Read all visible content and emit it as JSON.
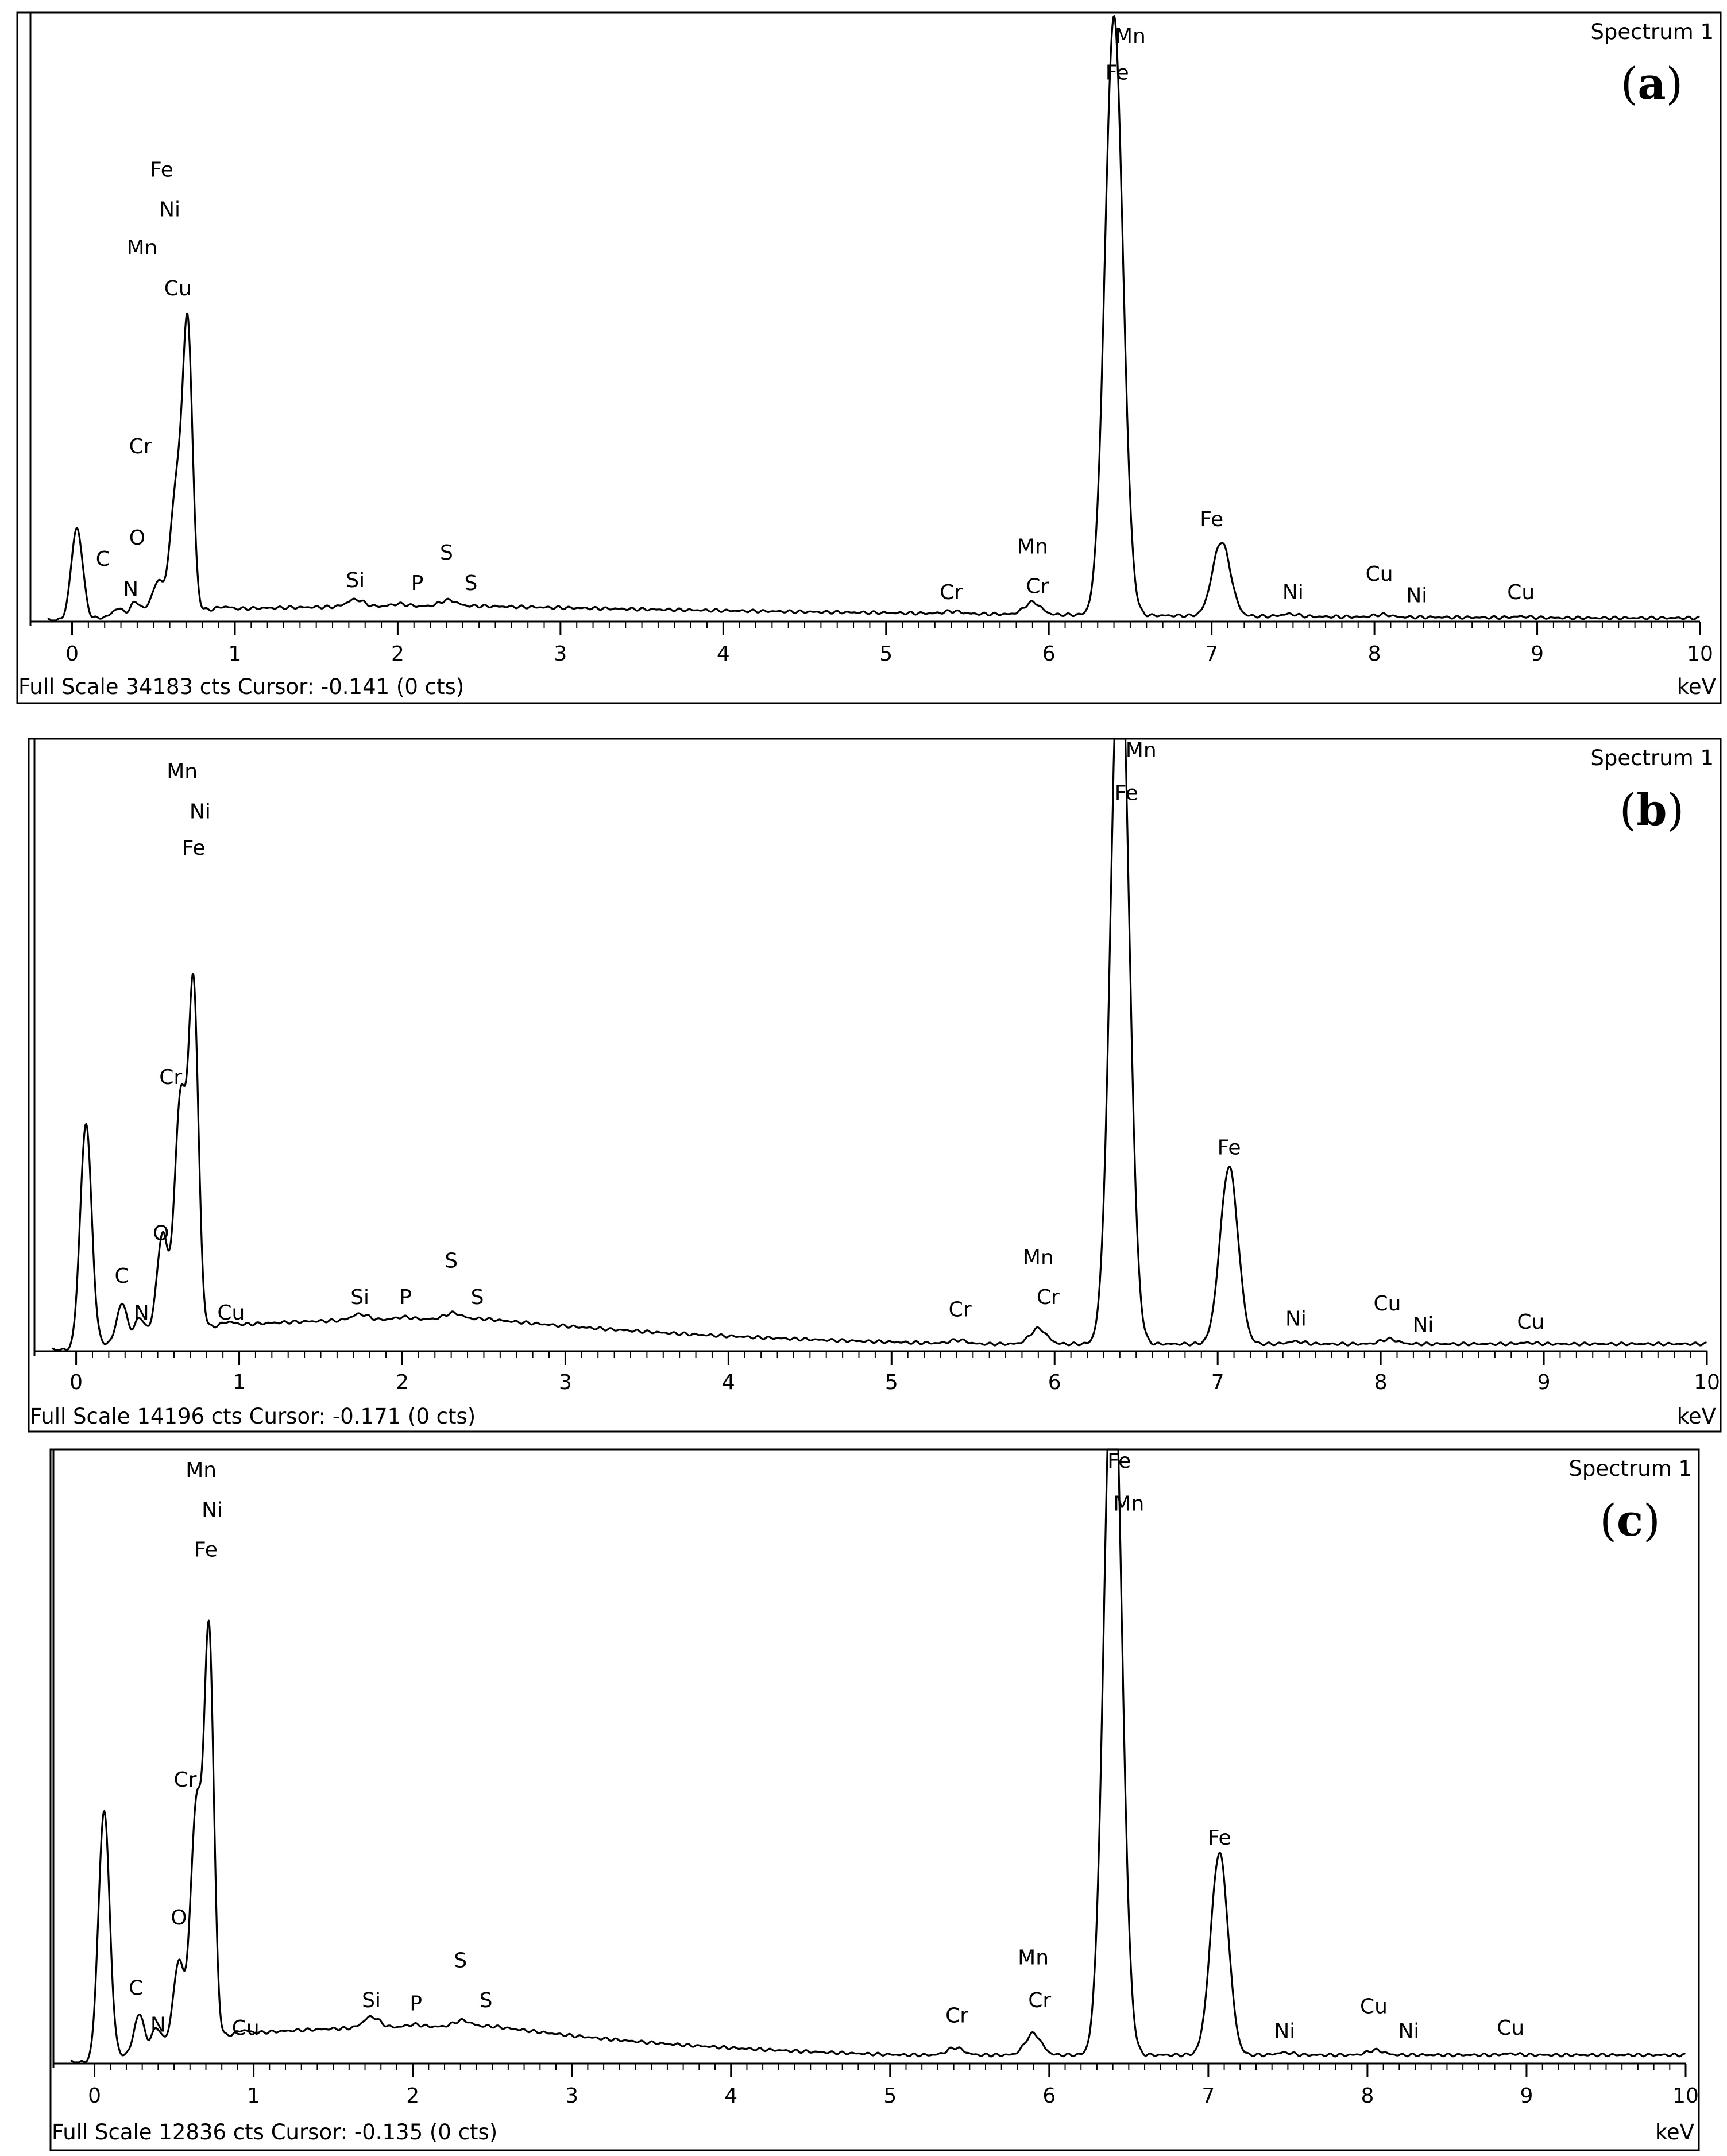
{
  "chart_data": [
    {
      "type": "line",
      "panel_label": "a",
      "spectrum_title": "Spectrum 1",
      "footer": "Full Scale 34183 cts Cursor: -0.141  (0 cts)",
      "xunit": "keV",
      "xlim": [
        -0.15,
        10
      ],
      "xticks": [
        "0",
        "1",
        "2",
        "3",
        "4",
        "5",
        "6",
        "7",
        "8",
        "9",
        "10"
      ],
      "peaks": [
        {
          "x": 0.03,
          "h": 0.152,
          "w": 0.035
        },
        {
          "x": 0.28,
          "h": 0.012,
          "w": 0.03
        },
        {
          "x": 0.39,
          "h": 0.02,
          "w": 0.03
        },
        {
          "x": 0.53,
          "h": 0.05,
          "w": 0.04
        },
        {
          "x": 0.64,
          "h": 0.2,
          "w": 0.035
        },
        {
          "x": 0.71,
          "h": 0.46,
          "w": 0.03
        },
        {
          "x": 0.93,
          "h": 0.004,
          "w": 0.04
        },
        {
          "x": 1.74,
          "h": 0.012,
          "w": 0.05
        },
        {
          "x": 2.01,
          "h": 0.004,
          "w": 0.05
        },
        {
          "x": 2.31,
          "h": 0.01,
          "w": 0.05
        },
        {
          "x": 5.41,
          "h": 0.004,
          "w": 0.05
        },
        {
          "x": 5.9,
          "h": 0.02,
          "w": 0.05
        },
        {
          "x": 6.4,
          "h": 0.985,
          "w": 0.055
        },
        {
          "x": 7.06,
          "h": 0.122,
          "w": 0.055
        },
        {
          "x": 7.48,
          "h": 0.004,
          "w": 0.05
        },
        {
          "x": 8.05,
          "h": 0.004,
          "w": 0.05
        },
        {
          "x": 8.9,
          "h": 0.002,
          "w": 0.05
        }
      ],
      "background": {
        "max": 0.024,
        "rise": 0.6,
        "peak_at": 2.5,
        "decay": 0.0026,
        "base": 0.004
      },
      "element_labels": [
        {
          "text": "Fe",
          "x": 0.55,
          "y": 0.73
        },
        {
          "text": "Ni",
          "x": 0.6,
          "y": 0.665
        },
        {
          "text": "Mn",
          "x": 0.43,
          "y": 0.602
        },
        {
          "text": "Cu",
          "x": 0.65,
          "y": 0.535
        },
        {
          "text": "Cr",
          "x": 0.42,
          "y": 0.275
        },
        {
          "text": "O",
          "x": 0.4,
          "y": 0.125
        },
        {
          "text": "C",
          "x": 0.19,
          "y": 0.09
        },
        {
          "text": "N",
          "x": 0.36,
          "y": 0.04
        },
        {
          "text": "Si",
          "x": 1.74,
          "y": 0.055
        },
        {
          "text": "P",
          "x": 2.12,
          "y": 0.05
        },
        {
          "text": "S",
          "x": 2.3,
          "y": 0.1
        },
        {
          "text": "S",
          "x": 2.45,
          "y": 0.05
        },
        {
          "text": "Cr",
          "x": 5.4,
          "y": 0.035
        },
        {
          "text": "Mn",
          "x": 5.9,
          "y": 0.11
        },
        {
          "text": "Cr",
          "x": 5.93,
          "y": 0.045
        },
        {
          "text": "Mn",
          "x": 6.5,
          "y": 0.95
        },
        {
          "text": "Fe",
          "x": 6.42,
          "y": 0.89
        },
        {
          "text": "Fe",
          "x": 7.0,
          "y": 0.155
        },
        {
          "text": "Ni",
          "x": 7.5,
          "y": 0.035
        },
        {
          "text": "Cu",
          "x": 8.03,
          "y": 0.065
        },
        {
          "text": "Ni",
          "x": 8.26,
          "y": 0.03
        },
        {
          "text": "Cu",
          "x": 8.9,
          "y": 0.035
        }
      ]
    },
    {
      "type": "line",
      "panel_label": "b",
      "spectrum_title": "Spectrum 1",
      "footer": "Full Scale 14196 cts Cursor: -0.171  (0 cts)",
      "xunit": "keV",
      "xlim": [
        -0.15,
        10
      ],
      "xticks": [
        "0",
        "1",
        "2",
        "3",
        "4",
        "5",
        "6",
        "7",
        "8",
        "9",
        "10"
      ],
      "peaks": [
        {
          "x": 0.06,
          "h": 0.37,
          "w": 0.035
        },
        {
          "x": 0.28,
          "h": 0.06,
          "w": 0.03
        },
        {
          "x": 0.39,
          "h": 0.03,
          "w": 0.03
        },
        {
          "x": 0.53,
          "h": 0.16,
          "w": 0.035
        },
        {
          "x": 0.64,
          "h": 0.38,
          "w": 0.035
        },
        {
          "x": 0.72,
          "h": 0.55,
          "w": 0.03
        },
        {
          "x": 0.93,
          "h": 0.006,
          "w": 0.04
        },
        {
          "x": 1.74,
          "h": 0.01,
          "w": 0.05
        },
        {
          "x": 2.01,
          "h": 0.004,
          "w": 0.05
        },
        {
          "x": 2.31,
          "h": 0.01,
          "w": 0.05
        },
        {
          "x": 5.41,
          "h": 0.006,
          "w": 0.05
        },
        {
          "x": 5.9,
          "h": 0.025,
          "w": 0.05
        },
        {
          "x": 6.4,
          "h": 1.2,
          "w": 0.055
        },
        {
          "x": 7.07,
          "h": 0.29,
          "w": 0.055
        },
        {
          "x": 7.48,
          "h": 0.004,
          "w": 0.05
        },
        {
          "x": 8.05,
          "h": 0.008,
          "w": 0.05
        },
        {
          "x": 8.9,
          "h": 0.002,
          "w": 0.05
        }
      ],
      "background": {
        "max": 0.052,
        "rise": 0.6,
        "peak_at": 2.5,
        "decay": 0.0055,
        "base": 0.01
      },
      "element_labels": [
        {
          "text": "Mn",
          "x": 0.65,
          "y": 0.935
        },
        {
          "text": "Ni",
          "x": 0.76,
          "y": 0.87
        },
        {
          "text": "Fe",
          "x": 0.72,
          "y": 0.81
        },
        {
          "text": "Cr",
          "x": 0.58,
          "y": 0.435
        },
        {
          "text": "O",
          "x": 0.52,
          "y": 0.18
        },
        {
          "text": "C",
          "x": 0.28,
          "y": 0.11
        },
        {
          "text": "N",
          "x": 0.4,
          "y": 0.05
        },
        {
          "text": "Cu",
          "x": 0.95,
          "y": 0.05
        },
        {
          "text": "Si",
          "x": 1.74,
          "y": 0.075
        },
        {
          "text": "P",
          "x": 2.02,
          "y": 0.075
        },
        {
          "text": "S",
          "x": 2.3,
          "y": 0.135
        },
        {
          "text": "S",
          "x": 2.46,
          "y": 0.075
        },
        {
          "text": "Cr",
          "x": 5.42,
          "y": 0.055
        },
        {
          "text": "Mn",
          "x": 5.9,
          "y": 0.14
        },
        {
          "text": "Cr",
          "x": 5.96,
          "y": 0.075
        },
        {
          "text": "Mn",
          "x": 6.53,
          "y": 0.97
        },
        {
          "text": "Fe",
          "x": 6.44,
          "y": 0.9
        },
        {
          "text": "Fe",
          "x": 7.07,
          "y": 0.32
        },
        {
          "text": "Ni",
          "x": 7.48,
          "y": 0.04
        },
        {
          "text": "Cu",
          "x": 8.04,
          "y": 0.065
        },
        {
          "text": "Ni",
          "x": 8.26,
          "y": 0.03
        },
        {
          "text": "Cu",
          "x": 8.92,
          "y": 0.035
        }
      ]
    },
    {
      "type": "line",
      "panel_label": "c",
      "spectrum_title": "Spectrum 1",
      "footer": "Full Scale 12836 cts Cursor: -0.135  (0 cts)",
      "xunit": "keV",
      "xlim": [
        -0.15,
        10
      ],
      "xticks": [
        "0",
        "1",
        "2",
        "3",
        "4",
        "5",
        "6",
        "7",
        "8",
        "9",
        "10"
      ],
      "peaks": [
        {
          "x": 0.06,
          "h": 0.41,
          "w": 0.035
        },
        {
          "x": 0.28,
          "h": 0.06,
          "w": 0.03
        },
        {
          "x": 0.39,
          "h": 0.03,
          "w": 0.03
        },
        {
          "x": 0.53,
          "h": 0.13,
          "w": 0.035
        },
        {
          "x": 0.64,
          "h": 0.38,
          "w": 0.035
        },
        {
          "x": 0.72,
          "h": 0.65,
          "w": 0.03
        },
        {
          "x": 0.93,
          "h": 0.006,
          "w": 0.04
        },
        {
          "x": 1.74,
          "h": 0.018,
          "w": 0.05
        },
        {
          "x": 2.01,
          "h": 0.004,
          "w": 0.05
        },
        {
          "x": 2.31,
          "h": 0.01,
          "w": 0.05
        },
        {
          "x": 5.41,
          "h": 0.012,
          "w": 0.05
        },
        {
          "x": 5.9,
          "h": 0.035,
          "w": 0.05
        },
        {
          "x": 6.4,
          "h": 1.2,
          "w": 0.055
        },
        {
          "x": 7.07,
          "h": 0.33,
          "w": 0.055
        },
        {
          "x": 7.48,
          "h": 0.004,
          "w": 0.05
        },
        {
          "x": 8.05,
          "h": 0.008,
          "w": 0.05
        },
        {
          "x": 8.9,
          "h": 0.002,
          "w": 0.05
        }
      ],
      "background": {
        "max": 0.06,
        "rise": 0.6,
        "peak_at": 2.5,
        "decay": 0.0062,
        "base": 0.012
      },
      "element_labels": [
        {
          "text": "Mn",
          "x": 0.67,
          "y": 0.955
        },
        {
          "text": "Ni",
          "x": 0.74,
          "y": 0.89
        },
        {
          "text": "Fe",
          "x": 0.7,
          "y": 0.825
        },
        {
          "text": "Cr",
          "x": 0.57,
          "y": 0.45
        },
        {
          "text": "O",
          "x": 0.53,
          "y": 0.225
        },
        {
          "text": "C",
          "x": 0.26,
          "y": 0.11
        },
        {
          "text": "N",
          "x": 0.4,
          "y": 0.05
        },
        {
          "text": "Cu",
          "x": 0.95,
          "y": 0.045
        },
        {
          "text": "Si",
          "x": 1.74,
          "y": 0.09
        },
        {
          "text": "P",
          "x": 2.02,
          "y": 0.085
        },
        {
          "text": "S",
          "x": 2.3,
          "y": 0.155
        },
        {
          "text": "S",
          "x": 2.46,
          "y": 0.09
        },
        {
          "text": "Cr",
          "x": 5.42,
          "y": 0.065
        },
        {
          "text": "Mn",
          "x": 5.9,
          "y": 0.16
        },
        {
          "text": "Cr",
          "x": 5.94,
          "y": 0.09
        },
        {
          "text": "Fe",
          "x": 6.44,
          "y": 0.97
        },
        {
          "text": "Mn",
          "x": 6.5,
          "y": 0.9
        },
        {
          "text": "Fe",
          "x": 7.07,
          "y": 0.355
        },
        {
          "text": "Ni",
          "x": 7.48,
          "y": 0.04
        },
        {
          "text": "Cu",
          "x": 8.04,
          "y": 0.08
        },
        {
          "text": "Ni",
          "x": 8.26,
          "y": 0.04
        },
        {
          "text": "Cu",
          "x": 8.9,
          "y": 0.045
        }
      ]
    }
  ]
}
